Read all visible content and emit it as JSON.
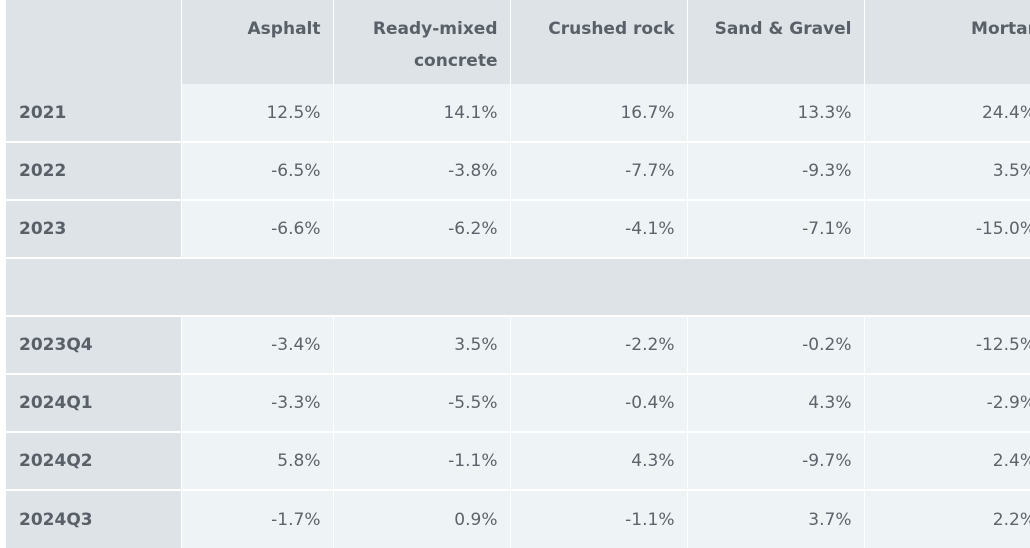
{
  "table": {
    "columns": [
      "",
      "Asphalt",
      "Ready-mixed concrete",
      "Crushed rock",
      "Sand & Gravel",
      "Mortar"
    ],
    "column_lines": {
      "ready_mixed_1": "Ready-mixed",
      "ready_mixed_2": "concrete"
    },
    "annual_rows": [
      {
        "label": "2021",
        "values": [
          "12.5%",
          "14.1%",
          "16.7%",
          "13.3%",
          "24.4%"
        ]
      },
      {
        "label": "2022",
        "values": [
          "-6.5%",
          "-3.8%",
          "-7.7%",
          "-9.3%",
          "3.5%"
        ]
      },
      {
        "label": "2023",
        "values": [
          "-6.6%",
          "-6.2%",
          "-4.1%",
          "-7.1%",
          "-15.0%"
        ]
      }
    ],
    "quarterly_rows": [
      {
        "label": "2023Q4",
        "values": [
          "-3.4%",
          "3.5%",
          "-2.2%",
          "-0.2%",
          "-12.5%"
        ]
      },
      {
        "label": "2024Q1",
        "values": [
          "-3.3%",
          "-5.5%",
          "-0.4%",
          "4.3%",
          "-2.9%"
        ]
      },
      {
        "label": "2024Q2",
        "values": [
          "5.8%",
          "-1.1%",
          "4.3%",
          "-9.7%",
          "2.4%"
        ]
      },
      {
        "label": "2024Q3",
        "values": [
          "-1.7%",
          "0.9%",
          "-1.1%",
          "3.7%",
          "2.2%"
        ]
      }
    ]
  },
  "colors": {
    "header_bg": "#dde3e7",
    "cell_bg": "#eef3f5",
    "text": "#5c636a"
  }
}
